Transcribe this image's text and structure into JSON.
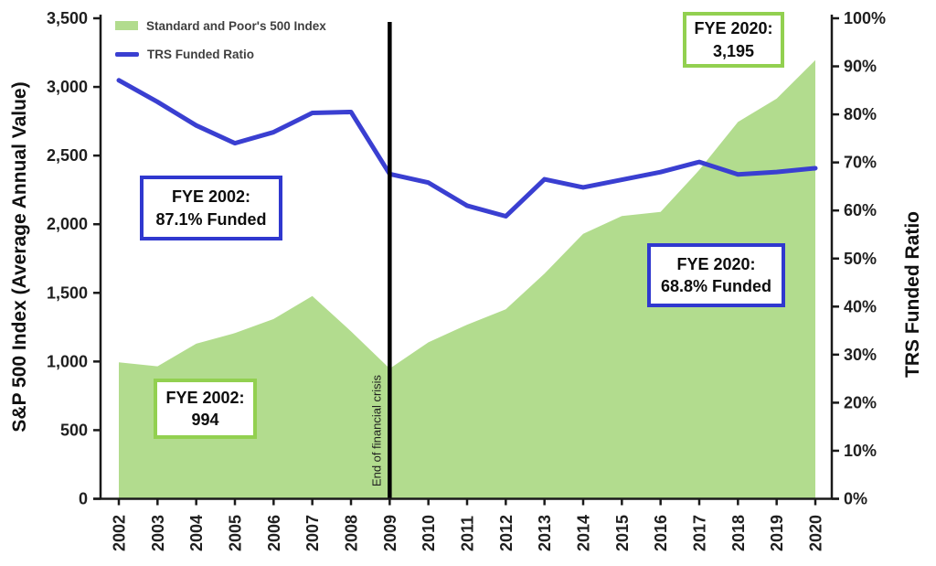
{
  "chart_data": {
    "type": "area",
    "title": "",
    "categories": [
      "2002",
      "2003",
      "2004",
      "2005",
      "2006",
      "2007",
      "2008",
      "2009",
      "2010",
      "2011",
      "2012",
      "2013",
      "2014",
      "2015",
      "2016",
      "2017",
      "2018",
      "2019",
      "2020"
    ],
    "series": [
      {
        "name": "Standard and Poor's 500 Index",
        "type": "area",
        "axis": "left",
        "color": "#b2dc8e",
        "values": [
          994,
          965,
          1130,
          1207,
          1310,
          1477,
          1220,
          948,
          1140,
          1268,
          1380,
          1640,
          1930,
          2060,
          2090,
          2395,
          2745,
          2915,
          3195
        ]
      },
      {
        "name": "TRS Funded Ratio",
        "type": "line",
        "axis": "right",
        "color": "#3a3fd1",
        "values": [
          87.1,
          82.6,
          77.7,
          74.0,
          76.3,
          80.3,
          80.5,
          67.6,
          65.8,
          61.0,
          58.8,
          66.5,
          64.8,
          66.4,
          68.0,
          70.1,
          67.5,
          68.0,
          68.8
        ]
      }
    ],
    "left_axis": {
      "label": "S&P 500 Index (Average Annual Value)",
      "min": 0,
      "max": 3500,
      "tick_step": 500,
      "tick_labels": [
        "3,500",
        "3,000",
        "2,500",
        "2,000",
        "1,500",
        "1,000",
        "500",
        "0"
      ]
    },
    "right_axis": {
      "label": "TRS Funded Ratio",
      "min": 0,
      "max": 100,
      "tick_step": 10,
      "tick_labels": [
        "100%",
        "90%",
        "80%",
        "70%",
        "60%",
        "50%",
        "40%",
        "30%",
        "20%",
        "10%",
        "0%"
      ]
    },
    "gridlines": false,
    "legend_position": "top-left",
    "event_line": {
      "category": "2009",
      "label": "End of financial crisis"
    }
  },
  "annotations": [
    {
      "id": "fye2020-index",
      "line1": "FYE 2020:",
      "line2": "3,195",
      "border": "box_green"
    },
    {
      "id": "fye2002-funded",
      "line1": "FYE 2002:",
      "line2": "87.1% Funded",
      "border": "box_blue"
    },
    {
      "id": "fye2020-funded",
      "line1": "FYE 2020:",
      "line2": "68.8% Funded",
      "border": "box_blue"
    },
    {
      "id": "fye2002-index",
      "line1": "FYE 2002:",
      "line2": "994",
      "border": "box_green"
    }
  ],
  "colors": {
    "area_green": "#b2dc8e",
    "line_blue": "#3a3fd1",
    "box_green": "#92d050",
    "box_blue": "#3038cf",
    "event_line_black": "#000000",
    "axis": "#1a1a1a",
    "tick_text": "#1f1f1f",
    "legend_text": "#3f3f3f"
  }
}
